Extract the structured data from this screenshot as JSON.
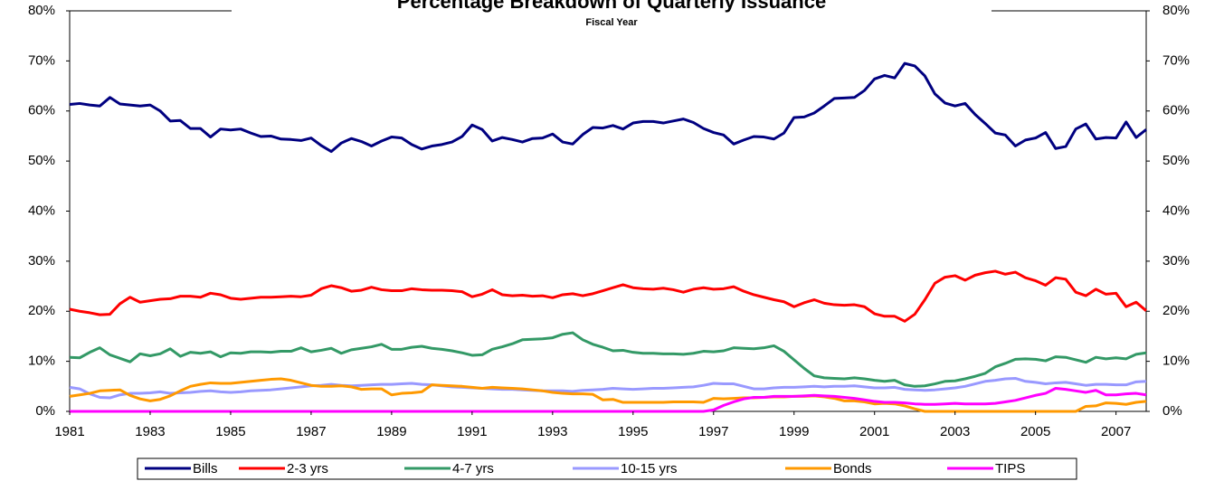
{
  "chart_data": {
    "type": "line",
    "title": "Percentage Breakdown of Quarterly Issuance",
    "subtitle": "Fiscal Year",
    "x": [
      1981,
      1981.25,
      1981.5,
      1981.75,
      1982,
      1982.25,
      1982.5,
      1982.75,
      1983,
      1983.25,
      1983.5,
      1983.75,
      1984,
      1984.25,
      1984.5,
      1984.75,
      1985,
      1985.25,
      1985.5,
      1985.75,
      1986,
      1986.25,
      1986.5,
      1986.75,
      1987,
      1987.25,
      1987.5,
      1987.75,
      1988,
      1988.25,
      1988.5,
      1988.75,
      1989,
      1989.25,
      1989.5,
      1989.75,
      1990,
      1990.25,
      1990.5,
      1990.75,
      1991,
      1991.25,
      1991.5,
      1991.75,
      1992,
      1992.25,
      1992.5,
      1992.75,
      1993,
      1993.25,
      1993.5,
      1993.75,
      1994,
      1994.25,
      1994.5,
      1994.75,
      1995,
      1995.25,
      1995.5,
      1995.75,
      1996,
      1996.25,
      1996.5,
      1996.75,
      1997,
      1997.25,
      1997.5,
      1997.75,
      1998,
      1998.25,
      1998.5,
      1998.75,
      1999,
      1999.25,
      1999.5,
      1999.75,
      2000,
      2000.25,
      2000.5,
      2000.75,
      2001,
      2001.25,
      2001.5,
      2001.75,
      2002,
      2002.25,
      2002.5,
      2002.75,
      2003,
      2003.25,
      2003.5,
      2003.75,
      2004,
      2004.25,
      2004.5,
      2004.75,
      2005,
      2005.25,
      2005.5,
      2005.75,
      2006,
      2006.25,
      2006.5,
      2006.75,
      2007,
      2007.25,
      2007.5,
      2007.75
    ],
    "series": [
      {
        "name": "Bills",
        "color": "#000080",
        "values": [
          61.3,
          61.5,
          61.2,
          61.0,
          62.7,
          61.4,
          61.2,
          61.0,
          61.2,
          60.0,
          58.0,
          58.1,
          56.5,
          56.5,
          54.8,
          56.4,
          56.2,
          56.4,
          55.6,
          54.9,
          55.0,
          54.4,
          54.3,
          54.1,
          54.6,
          53.1,
          51.9,
          53.6,
          54.5,
          53.9,
          53.0,
          54.0,
          54.8,
          54.6,
          53.3,
          52.4,
          53.0,
          53.3,
          53.8,
          54.9,
          57.2,
          56.3,
          54.0,
          54.7,
          54.3,
          53.8,
          54.5,
          54.6,
          55.4,
          53.8,
          53.4,
          55.3,
          56.7,
          56.6,
          57.1,
          56.4,
          57.6,
          57.9,
          57.9,
          57.6,
          58.0,
          58.4,
          57.7,
          56.5,
          55.7,
          55.2,
          53.4,
          54.2,
          54.9,
          54.8,
          54.4,
          55.6,
          58.7,
          58.8,
          59.6,
          61.0,
          62.5,
          62.6,
          62.7,
          64.1,
          66.4,
          67.1,
          66.6,
          69.5,
          69.0,
          67.0,
          63.4,
          61.6,
          61.0,
          61.5,
          59.3,
          57.5,
          55.6,
          55.2,
          53.0,
          54.2,
          54.6,
          55.7,
          52.5,
          52.9,
          56.4,
          57.4,
          54.4,
          54.7,
          54.6,
          57.8,
          54.7,
          56.3
        ]
      },
      {
        "name": "2-3 yrs",
        "color": "#ff0000",
        "values": [
          20.4,
          20.0,
          19.7,
          19.3,
          19.4,
          21.5,
          22.8,
          21.8,
          22.1,
          22.4,
          22.5,
          23.0,
          23.0,
          22.8,
          23.6,
          23.3,
          22.6,
          22.4,
          22.6,
          22.8,
          22.8,
          22.9,
          23.0,
          22.9,
          23.2,
          24.5,
          25.1,
          24.7,
          24.0,
          24.2,
          24.8,
          24.3,
          24.1,
          24.1,
          24.5,
          24.3,
          24.2,
          24.2,
          24.1,
          23.9,
          22.9,
          23.4,
          24.3,
          23.3,
          23.1,
          23.2,
          23.0,
          23.1,
          22.7,
          23.3,
          23.5,
          23.1,
          23.5,
          24.1,
          24.7,
          25.3,
          24.7,
          24.5,
          24.4,
          24.6,
          24.3,
          23.8,
          24.4,
          24.7,
          24.4,
          24.5,
          24.9,
          24.0,
          23.3,
          22.8,
          22.3,
          21.9,
          20.9,
          21.7,
          22.3,
          21.6,
          21.3,
          21.2,
          21.3,
          20.9,
          19.5,
          19.0,
          19.0,
          18.0,
          19.4,
          22.3,
          25.6,
          26.8,
          27.1,
          26.2,
          27.2,
          27.7,
          28.0,
          27.4,
          27.8,
          26.7,
          26.1,
          25.2,
          26.7,
          26.4,
          23.8,
          23.1,
          24.4,
          23.4,
          23.6,
          20.9,
          21.8,
          20.1
        ]
      },
      {
        "name": "4-7 yrs",
        "color": "#339966",
        "values": [
          10.8,
          10.7,
          11.8,
          12.7,
          11.3,
          10.6,
          9.9,
          11.5,
          11.1,
          11.5,
          12.5,
          11.0,
          11.8,
          11.6,
          11.9,
          10.9,
          11.7,
          11.6,
          11.9,
          11.9,
          11.8,
          12.0,
          12.0,
          12.7,
          11.9,
          12.2,
          12.6,
          11.6,
          12.3,
          12.6,
          12.9,
          13.4,
          12.4,
          12.4,
          12.8,
          13.0,
          12.6,
          12.4,
          12.1,
          11.7,
          11.2,
          11.3,
          12.4,
          12.9,
          13.5,
          14.3,
          14.4,
          14.5,
          14.7,
          15.4,
          15.7,
          14.3,
          13.4,
          12.8,
          12.1,
          12.2,
          11.8,
          11.6,
          11.6,
          11.5,
          11.5,
          11.4,
          11.6,
          12.0,
          11.9,
          12.1,
          12.7,
          12.6,
          12.5,
          12.7,
          13.1,
          12.0,
          10.3,
          8.6,
          7.1,
          6.7,
          6.6,
          6.5,
          6.7,
          6.5,
          6.2,
          6.0,
          6.2,
          5.3,
          5.0,
          5.1,
          5.5,
          6.0,
          6.1,
          6.5,
          7.0,
          7.6,
          8.9,
          9.6,
          10.4,
          10.5,
          10.4,
          10.1,
          10.9,
          10.8,
          10.3,
          9.8,
          10.8,
          10.5,
          10.7,
          10.5,
          11.4,
          11.7
        ]
      },
      {
        "name": "10-15 yrs",
        "color": "#9999ff",
        "values": [
          4.8,
          4.5,
          3.5,
          2.8,
          2.7,
          3.3,
          3.6,
          3.6,
          3.7,
          3.9,
          3.6,
          3.7,
          3.8,
          4.0,
          4.1,
          3.9,
          3.8,
          3.9,
          4.1,
          4.2,
          4.3,
          4.5,
          4.7,
          4.9,
          5.1,
          5.2,
          5.4,
          5.2,
          5.1,
          5.2,
          5.3,
          5.4,
          5.4,
          5.5,
          5.6,
          5.4,
          5.3,
          5.1,
          4.9,
          4.8,
          4.7,
          4.6,
          4.5,
          4.4,
          4.4,
          4.3,
          4.2,
          4.1,
          4.1,
          4.1,
          4.0,
          4.2,
          4.3,
          4.4,
          4.6,
          4.5,
          4.4,
          4.5,
          4.6,
          4.6,
          4.7,
          4.8,
          4.9,
          5.2,
          5.6,
          5.5,
          5.5,
          5.0,
          4.5,
          4.5,
          4.7,
          4.8,
          4.8,
          4.9,
          5.0,
          4.9,
          5.0,
          5.0,
          5.1,
          4.9,
          4.7,
          4.7,
          4.8,
          4.4,
          4.3,
          4.2,
          4.3,
          4.5,
          4.7,
          5.0,
          5.5,
          6.0,
          6.2,
          6.5,
          6.6,
          6.0,
          5.8,
          5.5,
          5.7,
          5.8,
          5.5,
          5.2,
          5.4,
          5.4,
          5.3,
          5.3,
          5.9,
          6.0
        ]
      },
      {
        "name": "Bonds",
        "color": "#ff9900",
        "values": [
          3.0,
          3.3,
          3.6,
          4.1,
          4.2,
          4.3,
          3.2,
          2.5,
          2.1,
          2.4,
          3.1,
          4.1,
          5.0,
          5.4,
          5.7,
          5.6,
          5.6,
          5.8,
          6.0,
          6.2,
          6.4,
          6.5,
          6.2,
          5.7,
          5.2,
          5.0,
          5.0,
          5.1,
          4.9,
          4.4,
          4.5,
          4.5,
          3.3,
          3.6,
          3.7,
          3.9,
          5.3,
          5.2,
          5.1,
          5.0,
          4.8,
          4.6,
          4.8,
          4.7,
          4.6,
          4.5,
          4.3,
          4.1,
          3.8,
          3.6,
          3.5,
          3.5,
          3.4,
          2.3,
          2.4,
          1.8,
          1.8,
          1.8,
          1.8,
          1.8,
          1.9,
          1.9,
          1.9,
          1.8,
          2.6,
          2.5,
          2.6,
          2.7,
          2.7,
          2.8,
          2.9,
          2.9,
          3.0,
          3.0,
          3.1,
          2.9,
          2.6,
          2.1,
          2.1,
          1.9,
          1.5,
          1.6,
          1.5,
          1.1,
          0.5,
          0,
          0,
          0,
          0,
          0,
          0,
          0,
          0,
          0,
          0,
          0,
          0,
          0,
          0,
          0,
          0,
          1.0,
          1.1,
          1.7,
          1.6,
          1.4,
          1.8,
          2.0
        ]
      },
      {
        "name": "TIPS",
        "color": "#ff00ff",
        "values": [
          0,
          0,
          0,
          0,
          0,
          0,
          0,
          0,
          0,
          0,
          0,
          0,
          0,
          0,
          0,
          0,
          0,
          0,
          0,
          0,
          0,
          0,
          0,
          0,
          0,
          0,
          0,
          0,
          0,
          0,
          0,
          0,
          0,
          0,
          0,
          0,
          0,
          0,
          0,
          0,
          0,
          0,
          0,
          0,
          0,
          0,
          0,
          0,
          0,
          0,
          0,
          0,
          0,
          0,
          0,
          0,
          0,
          0,
          0,
          0,
          0,
          0,
          0,
          0,
          0.3,
          1.2,
          1.9,
          2.5,
          2.8,
          2.8,
          3.0,
          3.0,
          3.0,
          3.1,
          3.2,
          3.1,
          3.0,
          2.8,
          2.6,
          2.3,
          2.0,
          1.8,
          1.8,
          1.7,
          1.5,
          1.4,
          1.4,
          1.5,
          1.6,
          1.5,
          1.5,
          1.5,
          1.6,
          1.9,
          2.2,
          2.7,
          3.2,
          3.6,
          4.6,
          4.4,
          4.1,
          3.8,
          4.2,
          3.3,
          3.3,
          3.5,
          3.6,
          3.3
        ]
      }
    ],
    "xlim": [
      1981,
      2007.75
    ],
    "xticks": [
      1981,
      1983,
      1985,
      1987,
      1989,
      1991,
      1993,
      1995,
      1997,
      1999,
      2001,
      2003,
      2005,
      2007
    ],
    "ylim": [
      0,
      80
    ],
    "yticks": [
      {
        "value": 0,
        "label": "0%"
      },
      {
        "value": 10,
        "label": "10%"
      },
      {
        "value": 20,
        "label": "20%"
      },
      {
        "value": 30,
        "label": "30%"
      },
      {
        "value": 40,
        "label": "40%"
      },
      {
        "value": 50,
        "label": "50%"
      },
      {
        "value": 60,
        "label": "60%"
      },
      {
        "value": 70,
        "label": "70%"
      },
      {
        "value": 80,
        "label": "80%"
      }
    ],
    "y2lim": [
      0,
      80
    ],
    "y2ticks": [
      {
        "value": 0,
        "label": "0%"
      },
      {
        "value": 10,
        "label": "10%"
      },
      {
        "value": 20,
        "label": "20%"
      },
      {
        "value": 30,
        "label": "30%"
      },
      {
        "value": 40,
        "label": "40%"
      },
      {
        "value": 50,
        "label": "50%"
      },
      {
        "value": 60,
        "label": "60%"
      },
      {
        "value": 70,
        "label": "70%"
      },
      {
        "value": 80,
        "label": "80%"
      }
    ],
    "grid": false,
    "legend": "bottom"
  }
}
